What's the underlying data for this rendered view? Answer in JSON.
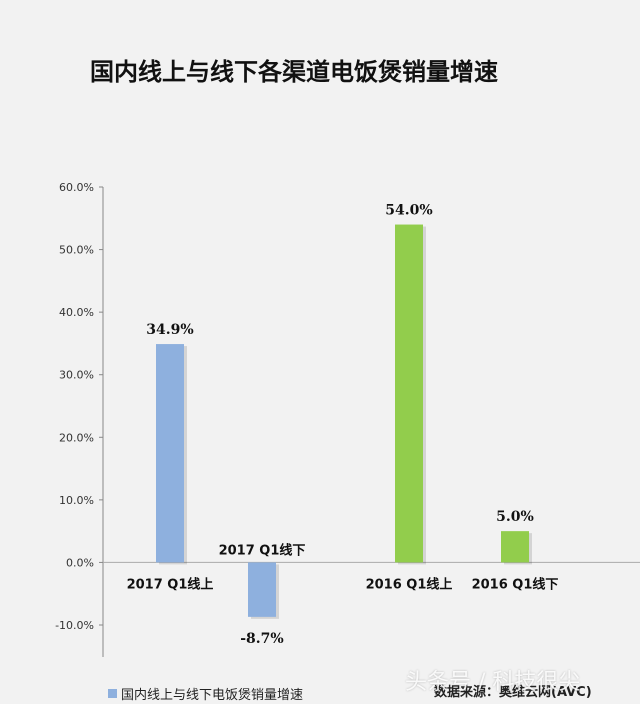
{
  "title": "国内线上与线下各渠道电饭煲销量增速",
  "legend_label": "国内线上与线下电饭煲销量增速",
  "source": "数据来源：奥维云网(AVC)",
  "watermark": "头条号 / 科技很尖",
  "colors": {
    "series_2017": "#8eb0de",
    "series_2016": "#92cd4c",
    "axis": "#888888",
    "grid": "#d9d9d9"
  },
  "chart_data": {
    "type": "bar",
    "title": "国内线上与线下各渠道电饭煲销量增速",
    "ylim": [
      -10,
      60
    ],
    "yticks": [
      -10,
      0,
      10,
      20,
      30,
      40,
      50,
      60
    ],
    "ytick_labels": [
      "-10.0%",
      "0.0%",
      "10.0%",
      "20.0%",
      "30.0%",
      "40.0%",
      "50.0%",
      "60.0%"
    ],
    "grid": false,
    "legend": "bottom-left",
    "categories": [
      "2017 Q1线上",
      "2017 Q1线下",
      "2016 Q1线上",
      "2016 Q1线下"
    ],
    "values": [
      34.9,
      -8.7,
      54.0,
      5.0
    ],
    "data_labels": [
      "34.9%",
      "-8.7%",
      "54.0%",
      "5.0%"
    ],
    "bar_colors": [
      "#8eb0de",
      "#8eb0de",
      "#92cd4c",
      "#92cd4c"
    ]
  }
}
